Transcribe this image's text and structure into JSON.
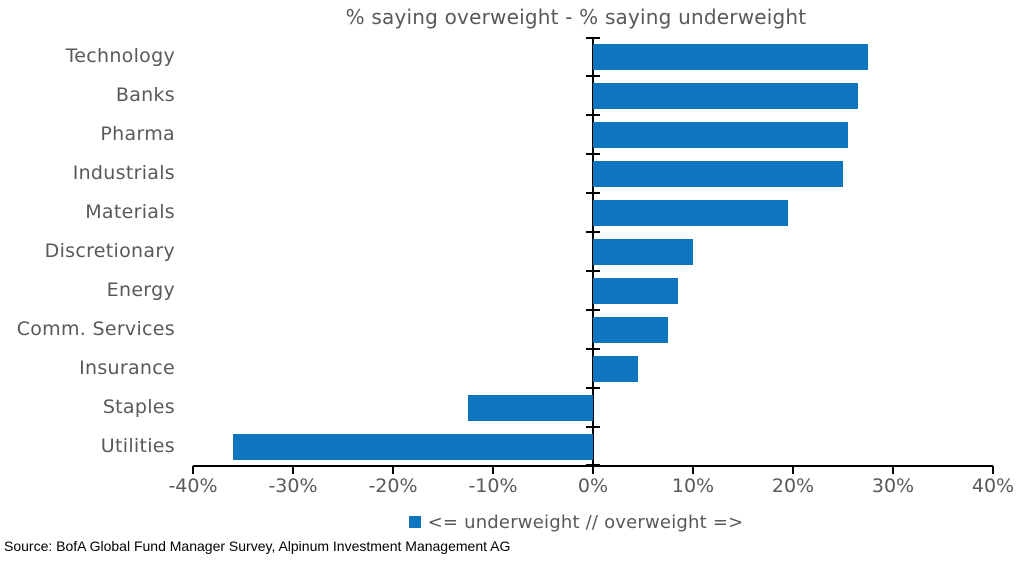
{
  "chart_data": {
    "type": "bar",
    "orientation": "horizontal",
    "title": "% saying overweight - % saying underweight",
    "categories": [
      "Technology",
      "Banks",
      "Pharma",
      "Industrials",
      "Materials",
      "Discretionary",
      "Energy",
      "Comm. Services",
      "Insurance",
      "Staples",
      "Utilities"
    ],
    "values": [
      27.5,
      26.5,
      25.5,
      25,
      19.5,
      10,
      8.5,
      7.5,
      4.5,
      -12.5,
      -36
    ],
    "unit": "%",
    "xlim": [
      -40,
      40
    ],
    "x_tick_values": [
      -40,
      -30,
      -20,
      -10,
      0,
      10,
      20,
      30,
      40
    ],
    "x_tick_labels": [
      "-40%",
      "-30%",
      "-20%",
      "-10%",
      "0%",
      "10%",
      "20%",
      "30%",
      "40%"
    ],
    "bar_color": "#0d76be",
    "axis_color": "#000000",
    "text_color": "#595959",
    "grid": false,
    "legend_position": "bottom"
  },
  "legend": {
    "marker_color": "#0d76be",
    "label": "<= underweight // overweight =>"
  },
  "source": {
    "text": "Source: BofA Global Fund Manager Survey, Alpinum Investment Management AG"
  }
}
